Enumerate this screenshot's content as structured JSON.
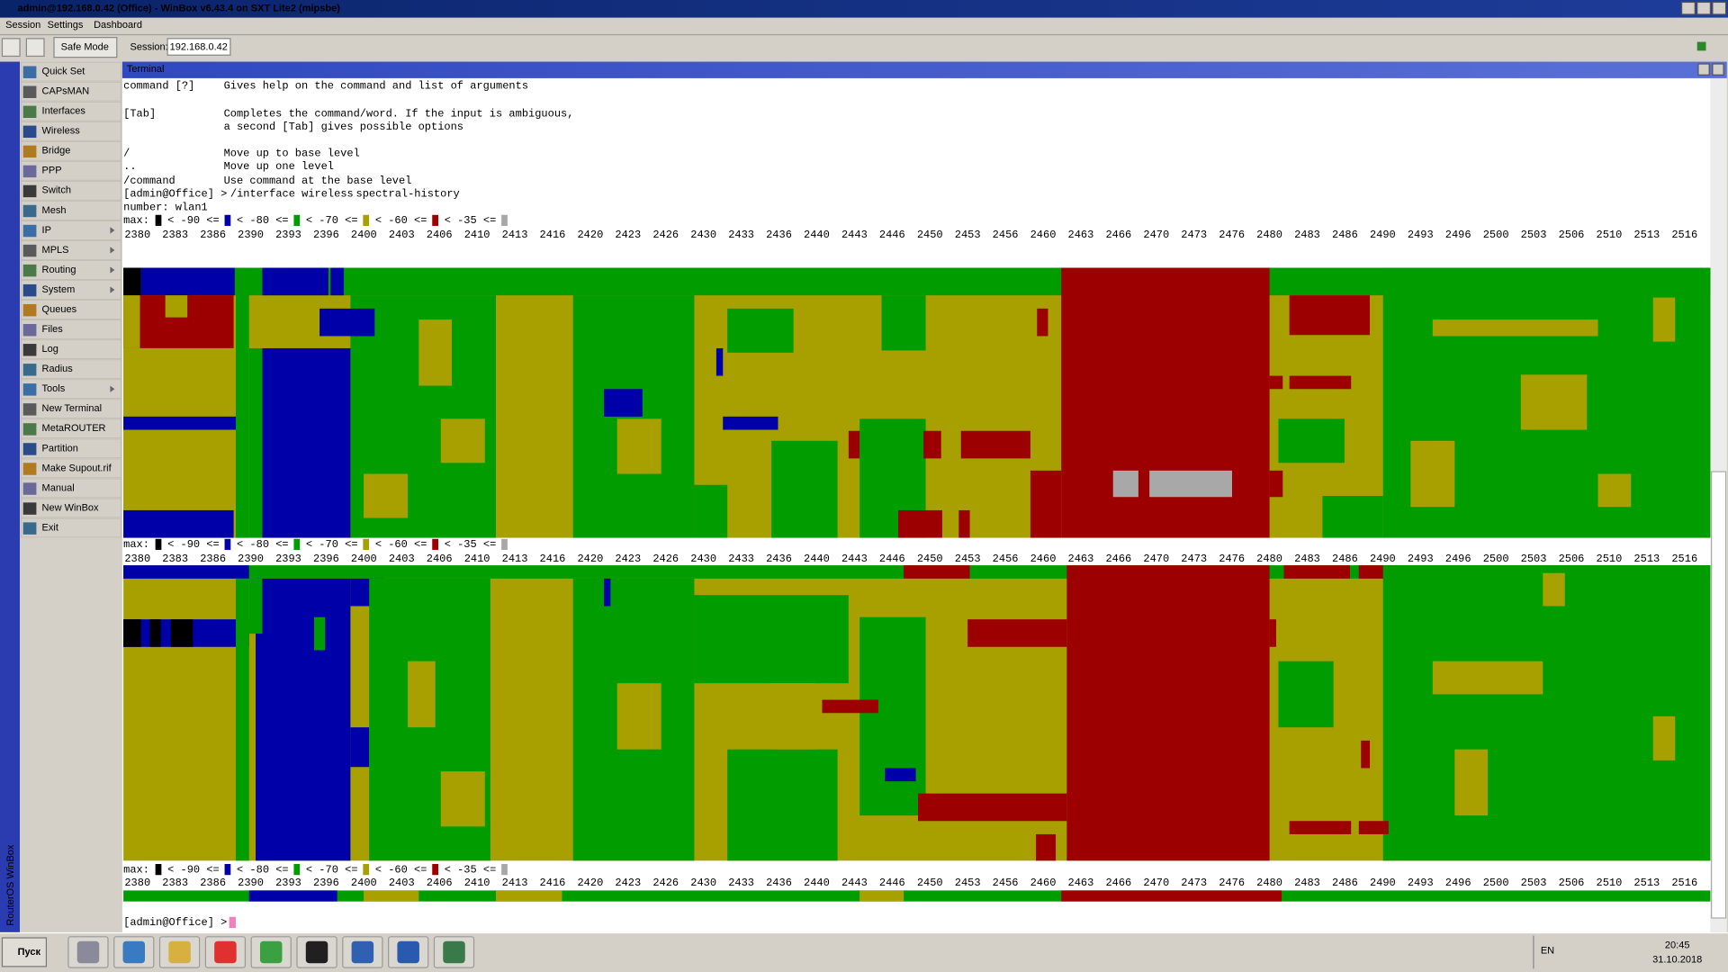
{
  "window": {
    "title": "admin@192.168.0.42 (Office) - WinBox v6.43.4 on SXT Lite2 (mipsbe)"
  },
  "menu": [
    "Session",
    "Settings",
    "Dashboard"
  ],
  "toolbar": {
    "safe_mode": "Safe Mode",
    "session_label": "Session:",
    "session_value": "192.168.0.42"
  },
  "sidebar": {
    "brand": "RouterOS WinBox",
    "items": [
      "Quick Set",
      "CAPsMAN",
      "Interfaces",
      "Wireless",
      "Bridge",
      "PPP",
      "Switch",
      "Mesh",
      "IP",
      "MPLS",
      "Routing",
      "System",
      "Queues",
      "Files",
      "Log",
      "Radius",
      "Tools",
      "New Terminal",
      "MetaROUTER",
      "Partition",
      "Make Supout.rif",
      "Manual",
      "New WinBox",
      "Exit"
    ]
  },
  "terminal": {
    "title": "Terminal",
    "help_lines": [
      {
        "key": "command [?]",
        "desc": "Gives help on the command and list of arguments"
      },
      {
        "key": "[Tab]",
        "desc": "Completes the command/word. If the input is ambiguous,"
      },
      {
        "desc": "a second [Tab] gives possible options"
      },
      {
        "key": "/",
        "desc": "Move up to base level"
      },
      {
        "key": "..",
        "desc": "Move up one level"
      },
      {
        "key": "/command",
        "desc": "Use command at the base level"
      }
    ],
    "prompt": "[admin@Office] >",
    "command": "/interface wireless",
    "subcommand": "spectral-history",
    "number": "number: wlan1",
    "legend": {
      "label": "max:",
      "items": [
        "< -90 <=",
        "< -80 <=",
        "< -70 <=",
        "< -60 <=",
        "< -35 <="
      ],
      "colors": [
        "#000000",
        "#0000a8",
        "#009c00",
        "#a8a000",
        "#9c0000",
        "#a8a8a8"
      ]
    },
    "frequencies": [
      "2380",
      "2383",
      "2386",
      "2390",
      "2393",
      "2396",
      "2400",
      "2403",
      "2406",
      "2410",
      "2413",
      "2416",
      "2420",
      "2423",
      "2426",
      "2430",
      "2433",
      "2436",
      "2440",
      "2443",
      "2446",
      "2450",
      "2453",
      "2456",
      "2460",
      "2463",
      "2466",
      "2470",
      "2473",
      "2476",
      "2480",
      "2483",
      "2486",
      "2490",
      "2493",
      "2496",
      "2500",
      "2503",
      "2506",
      "2510",
      "2513",
      "2516"
    ]
  },
  "taskbar": {
    "start": "Пуск",
    "language": "EN",
    "time": "20:45",
    "date": "31.10.2018"
  }
}
